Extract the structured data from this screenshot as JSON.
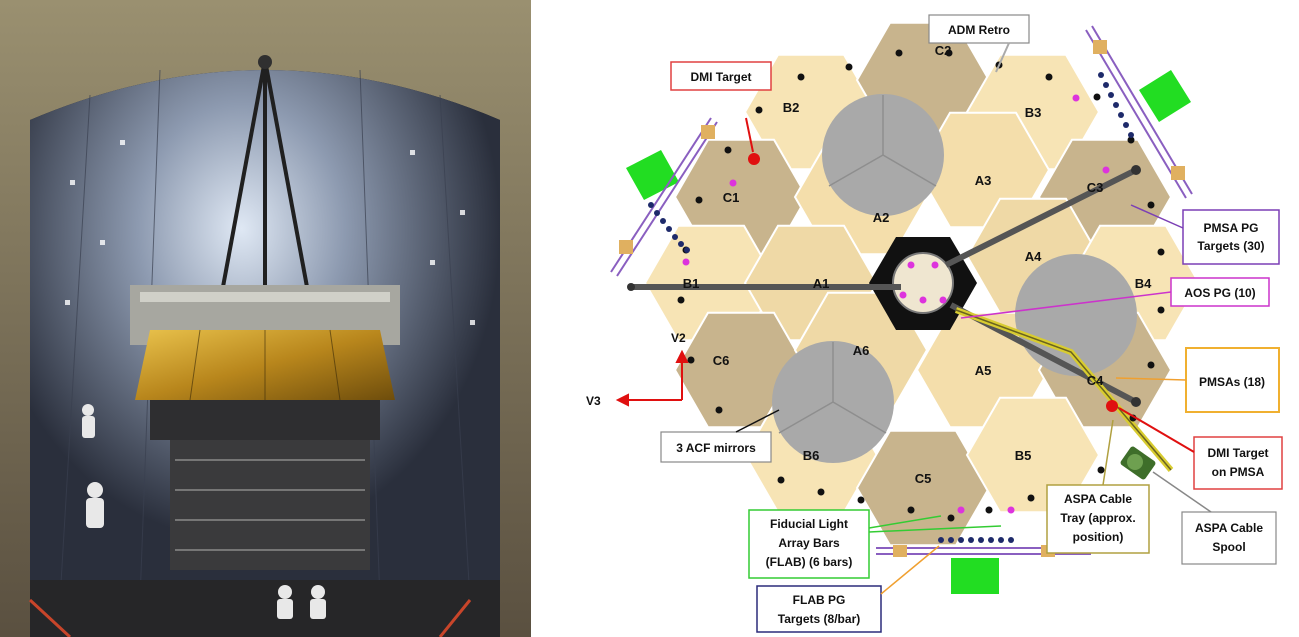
{
  "photo": {
    "description_icon": "chamber-photo"
  },
  "diagram": {
    "segments": [
      {
        "id": "B2",
        "label": "B2"
      },
      {
        "id": "C2",
        "label": "C2"
      },
      {
        "id": "B3",
        "label": "B3"
      },
      {
        "id": "C1",
        "label": "C1"
      },
      {
        "id": "A2",
        "label": "A2"
      },
      {
        "id": "A3",
        "label": "A3"
      },
      {
        "id": "C3",
        "label": "C3"
      },
      {
        "id": "B1",
        "label": "B1"
      },
      {
        "id": "A1",
        "label": "A1"
      },
      {
        "id": "A4",
        "label": "A4"
      },
      {
        "id": "B4",
        "label": "B4"
      },
      {
        "id": "C6",
        "label": "C6"
      },
      {
        "id": "A6",
        "label": "A6"
      },
      {
        "id": "A5",
        "label": "A5"
      },
      {
        "id": "C4",
        "label": "C4"
      },
      {
        "id": "B6",
        "label": "B6"
      },
      {
        "id": "C5",
        "label": "C5"
      },
      {
        "id": "B5",
        "label": "B5"
      }
    ],
    "callouts": {
      "adm_retro": "ADM Retro",
      "dmi_target": "DMI Target",
      "pmsa_pg_line1": "PMSA PG",
      "pmsa_pg_line2": "Targets (30)",
      "aos_pg": "AOS PG (10)",
      "pmsas": "PMSAs (18)",
      "dmi_pmsa_line1": "DMI Target",
      "dmi_pmsa_line2": "on PMSA",
      "aspa_spool_line1": "ASPA Cable",
      "aspa_spool_line2": "Spool",
      "aspa_tray_line1": "ASPA Cable",
      "aspa_tray_line2": "Tray (approx.",
      "aspa_tray_line3": "position)",
      "acf": "3 ACF mirrors",
      "flab_line1": "Fiducial Light",
      "flab_line2": "Array Bars",
      "flab_line3": "(FLAB) (6 bars)",
      "flab_pg_line1": "FLAB PG",
      "flab_pg_line2": "Targets (8/bar)"
    },
    "axes": {
      "v2": "V2",
      "v3": "V3"
    },
    "colors": {
      "hex_light": "#f7e4b5",
      "hex_mid": "#efd9a6",
      "hex_dark": "#c8b48d",
      "acf": "#a9a9a9",
      "green_target": "#22dd22",
      "dmi_red": "#e01010",
      "pmsa_purple": "#7b3fb5",
      "aos_magenta": "#cc33cc",
      "pmsas_orange": "#f0a030",
      "flab_green": "#33cc33",
      "flab_pg_navy": "#2b2b7a",
      "aspa_olive": "#b0a040",
      "cable_yellow": "#e0d020"
    }
  }
}
